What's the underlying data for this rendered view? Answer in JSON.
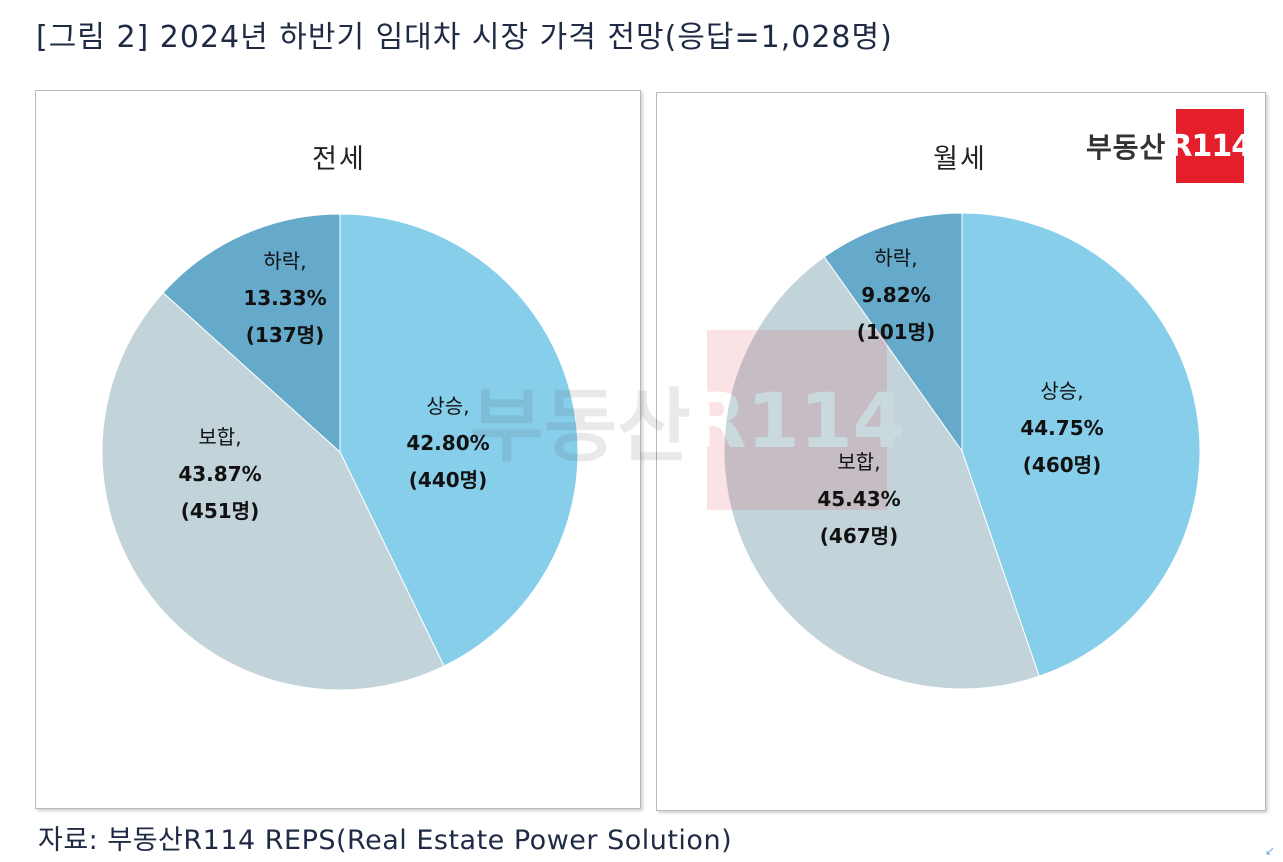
{
  "figure_title": "[그림 2] 2024년 하반기 임대차 시장 가격 전망(응답=1,028명)",
  "source": "자료: 부동산R114 REPS(Real Estate Power Solution)",
  "logo": {
    "text": "부동산",
    "badge": "R114"
  },
  "colors": {
    "rise": "#87ceeb",
    "hold": "#c2d4da",
    "fall": "#65aacb"
  },
  "chart_data": [
    {
      "type": "pie",
      "title": "전세",
      "start_angle_deg": 0,
      "direction": "clockwise",
      "slices": [
        {
          "key": "rise",
          "label": "상승,",
          "value": 42.8,
          "value_text": "42.80%",
          "count_text": "(440명)"
        },
        {
          "key": "hold",
          "label": "보합,",
          "value": 43.87,
          "value_text": "43.87%",
          "count_text": "(451명)"
        },
        {
          "key": "fall",
          "label": "하락,",
          "value": 13.33,
          "value_text": "13.33%",
          "count_text": "(137명)"
        }
      ]
    },
    {
      "type": "pie",
      "title": "월세",
      "start_angle_deg": 0,
      "direction": "clockwise",
      "slices": [
        {
          "key": "rise",
          "label": "상승,",
          "value": 44.75,
          "value_text": "44.75%",
          "count_text": "(460명)"
        },
        {
          "key": "hold",
          "label": "보합,",
          "value": 45.43,
          "value_text": "45.43%",
          "count_text": "(467명)"
        },
        {
          "key": "fall",
          "label": "하락,",
          "value": 9.82,
          "value_text": "9.82%",
          "count_text": "(101명)"
        }
      ]
    }
  ]
}
